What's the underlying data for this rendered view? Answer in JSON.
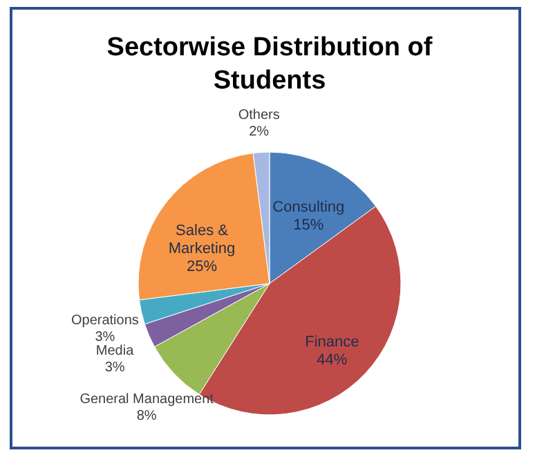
{
  "chart_data": {
    "type": "pie",
    "title": "Sectorwise Distribution of Students",
    "categories": [
      "Consulting",
      "Finance",
      "General Management",
      "Media",
      "Operations",
      "Sales & Marketing",
      "Others"
    ],
    "values": [
      15,
      44,
      8,
      3,
      3,
      25,
      2
    ],
    "colors": [
      "#4a7ebb",
      "#be4b48",
      "#98b954",
      "#7d60a0",
      "#46aac5",
      "#f79646",
      "#a7b9e3"
    ],
    "value_labels": [
      "15%",
      "44%",
      "8%",
      "3%",
      "3%",
      "25%",
      "2%"
    ],
    "legend": false
  }
}
